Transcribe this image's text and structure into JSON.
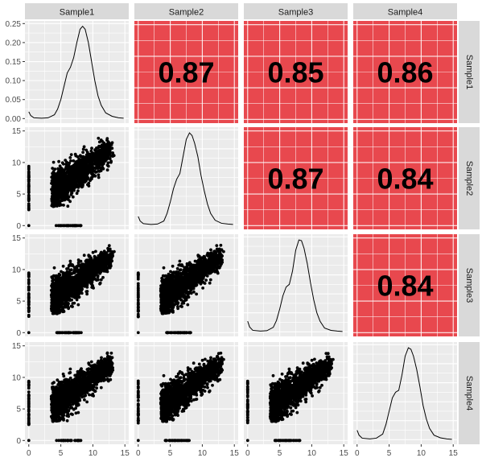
{
  "chart_data": {
    "type": "scatter-matrix",
    "variables": [
      "Sample1",
      "Sample2",
      "Sample3",
      "Sample4"
    ],
    "correlations": [
      {
        "row": 0,
        "col": 1,
        "label": "0.87",
        "value": 0.87
      },
      {
        "row": 0,
        "col": 2,
        "label": "0.85",
        "value": 0.85
      },
      {
        "row": 0,
        "col": 3,
        "label": "0.86",
        "value": 0.86
      },
      {
        "row": 1,
        "col": 2,
        "label": "0.87",
        "value": 0.87
      },
      {
        "row": 1,
        "col": 3,
        "label": "0.84",
        "value": 0.84
      },
      {
        "row": 2,
        "col": 3,
        "label": "0.84",
        "value": 0.84
      }
    ],
    "x_axis": {
      "range": [
        -0.6,
        15.6
      ],
      "ticks": [
        0,
        5,
        10,
        15
      ],
      "tick_labels": [
        "0",
        "5",
        "10",
        "15"
      ]
    },
    "y_axis_scatter": {
      "range": [
        -0.6,
        15.6
      ],
      "ticks": [
        0,
        5,
        10,
        15
      ],
      "tick_labels": [
        "0",
        "5",
        "10",
        "15"
      ]
    },
    "y_axis_density": {
      "range": [
        -0.012,
        0.257
      ],
      "ticks": [
        0,
        0.05,
        0.1,
        0.15,
        0.2,
        0.25
      ],
      "tick_labels": [
        "0.00",
        "0.05",
        "0.10",
        "0.15",
        "0.20",
        "0.25"
      ]
    },
    "density_curves": [
      {
        "variable": "Sample1",
        "points": [
          [
            0,
            0.018
          ],
          [
            0.3,
            0.008
          ],
          [
            0.8,
            0.002
          ],
          [
            2,
            0.001
          ],
          [
            3,
            0.002
          ],
          [
            4,
            0.01
          ],
          [
            4.5,
            0.025
          ],
          [
            5,
            0.05
          ],
          [
            5.5,
            0.085
          ],
          [
            6,
            0.12
          ],
          [
            6.5,
            0.135
          ],
          [
            7,
            0.16
          ],
          [
            7.5,
            0.2
          ],
          [
            8,
            0.235
          ],
          [
            8.4,
            0.243
          ],
          [
            8.8,
            0.235
          ],
          [
            9.3,
            0.2
          ],
          [
            9.8,
            0.15
          ],
          [
            10.3,
            0.1
          ],
          [
            10.8,
            0.06
          ],
          [
            11.3,
            0.035
          ],
          [
            12,
            0.015
          ],
          [
            13,
            0.006
          ],
          [
            14,
            0.002
          ],
          [
            14.8,
            0.001
          ]
        ]
      },
      {
        "variable": "Sample2",
        "points": [
          [
            0,
            0.022
          ],
          [
            0.3,
            0.01
          ],
          [
            0.8,
            0.003
          ],
          [
            2,
            0.001
          ],
          [
            3,
            0.002
          ],
          [
            4,
            0.01
          ],
          [
            4.5,
            0.03
          ],
          [
            5,
            0.06
          ],
          [
            5.5,
            0.095
          ],
          [
            6,
            0.12
          ],
          [
            6.5,
            0.135
          ],
          [
            7,
            0.18
          ],
          [
            7.5,
            0.225
          ],
          [
            8,
            0.242
          ],
          [
            8.4,
            0.235
          ],
          [
            8.8,
            0.215
          ],
          [
            9.3,
            0.18
          ],
          [
            9.8,
            0.13
          ],
          [
            10.3,
            0.09
          ],
          [
            10.8,
            0.055
          ],
          [
            11.3,
            0.03
          ],
          [
            12,
            0.012
          ],
          [
            13,
            0.004
          ],
          [
            14,
            0.002
          ],
          [
            14.8,
            0.001
          ]
        ]
      },
      {
        "variable": "Sample3",
        "points": [
          [
            0,
            0.028
          ],
          [
            0.3,
            0.013
          ],
          [
            0.8,
            0.004
          ],
          [
            2,
            0.002
          ],
          [
            3,
            0.003
          ],
          [
            4,
            0.012
          ],
          [
            4.5,
            0.03
          ],
          [
            5,
            0.06
          ],
          [
            5.5,
            0.095
          ],
          [
            6,
            0.118
          ],
          [
            6.5,
            0.125
          ],
          [
            7,
            0.16
          ],
          [
            7.5,
            0.215
          ],
          [
            8,
            0.242
          ],
          [
            8.4,
            0.24
          ],
          [
            8.8,
            0.22
          ],
          [
            9.3,
            0.18
          ],
          [
            9.8,
            0.13
          ],
          [
            10.3,
            0.085
          ],
          [
            10.8,
            0.05
          ],
          [
            11.3,
            0.028
          ],
          [
            12,
            0.01
          ],
          [
            13,
            0.004
          ],
          [
            14,
            0.002
          ],
          [
            14.8,
            0.001
          ]
        ]
      },
      {
        "variable": "Sample4",
        "points": [
          [
            0,
            0.025
          ],
          [
            0.3,
            0.012
          ],
          [
            0.8,
            0.004
          ],
          [
            2,
            0.002
          ],
          [
            3,
            0.004
          ],
          [
            4,
            0.015
          ],
          [
            4.5,
            0.04
          ],
          [
            5,
            0.075
          ],
          [
            5.5,
            0.11
          ],
          [
            6,
            0.125
          ],
          [
            6.5,
            0.13
          ],
          [
            7,
            0.17
          ],
          [
            7.5,
            0.22
          ],
          [
            8,
            0.242
          ],
          [
            8.4,
            0.238
          ],
          [
            8.8,
            0.22
          ],
          [
            9.3,
            0.185
          ],
          [
            9.8,
            0.14
          ],
          [
            10.3,
            0.09
          ],
          [
            10.8,
            0.055
          ],
          [
            11.3,
            0.03
          ],
          [
            12,
            0.012
          ],
          [
            13,
            0.005
          ],
          [
            14,
            0.002
          ],
          [
            14.8,
            0.001
          ]
        ]
      }
    ],
    "scatter_shape": {
      "cloud": {
        "x_min": 3.5,
        "x_max": 14.8,
        "y_at_x_min": 5.2,
        "slope": 0.72,
        "spread": 1.6,
        "n": 1500
      },
      "zero_x_column": {
        "x": 0,
        "y_range": [
          2.5,
          9.5
        ],
        "n": 45
      },
      "zero_y_row": {
        "y": 0,
        "x_range": [
          4.2,
          8.2
        ],
        "n": 45
      },
      "origin_point": [
        0,
        0
      ]
    },
    "colors": {
      "panel_bg": "#ebebeb",
      "grid": "#ffffff",
      "strip_bg": "#d9d9d9",
      "correlation_fill": "#e8484e",
      "points": "#000000",
      "line": "#000000",
      "text": "#1a1a1a",
      "axis_text": "#4d4d4d"
    },
    "grid": true,
    "legend": "none"
  }
}
